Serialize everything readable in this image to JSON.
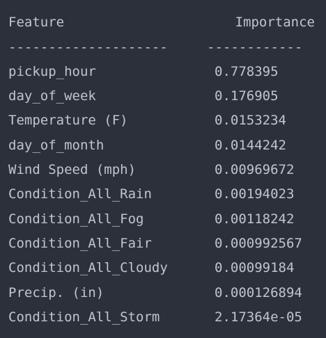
{
  "header": {
    "feature_label": "Feature",
    "importance_label": "Importance",
    "separator_feature": "--------------------",
    "separator_importance": "------------"
  },
  "rows": [
    {
      "feature": "pickup_hour",
      "importance": "0.778395"
    },
    {
      "feature": "day_of_week",
      "importance": "0.176905"
    },
    {
      "feature": "Temperature (F)",
      "importance": "0.0153234"
    },
    {
      "feature": "day_of_month",
      "importance": "0.0144242"
    },
    {
      "feature": "Wind Speed (mph)",
      "importance": "0.00969672"
    },
    {
      "feature": "Condition_All_Rain",
      "importance": "0.00194023"
    },
    {
      "feature": "Condition_All_Fog",
      "importance": "0.00118242"
    },
    {
      "feature": "Condition_All_Fair",
      "importance": "0.000992567"
    },
    {
      "feature": "Condition_All_Cloudy",
      "importance": "0.00099184"
    },
    {
      "feature": "Precip. (in)",
      "importance": "0.000126894"
    },
    {
      "feature": "Condition_All_Storm",
      "importance": "2.17364e-05"
    }
  ],
  "colors": {
    "background": "#2b303b",
    "text": "#c0c5ce"
  }
}
